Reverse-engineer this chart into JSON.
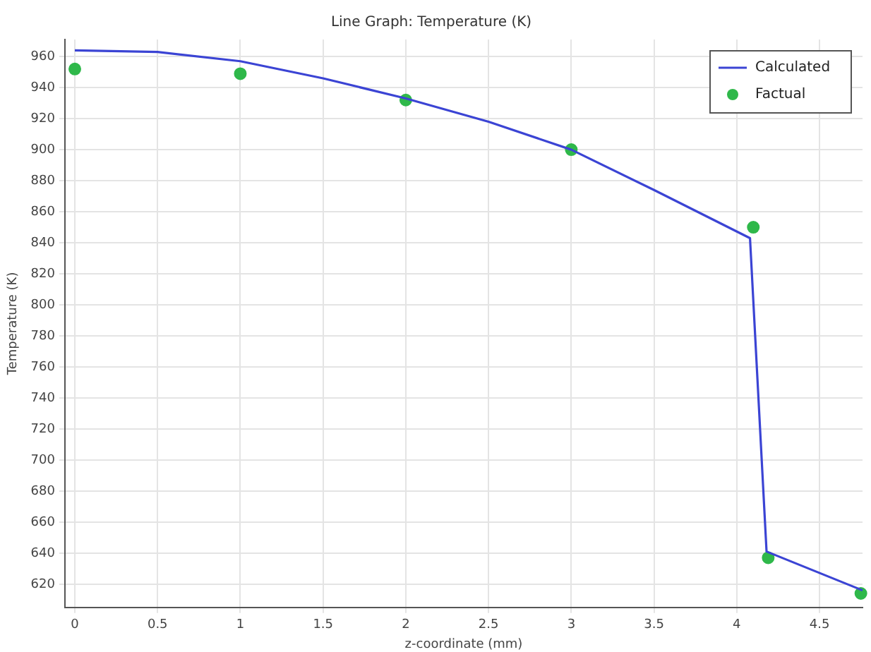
{
  "chart_data": {
    "type": "line",
    "title": "Line Graph: Temperature (K)",
    "xlabel": "z-coordinate (mm)",
    "ylabel": "Temperature (K)",
    "xlim": [
      -0.06,
      4.76
    ],
    "xticks": [
      0,
      0.5,
      1,
      1.5,
      2,
      2.5,
      3,
      3.5,
      4,
      4.5
    ],
    "ylim": [
      605,
      971
    ],
    "yticks": [
      620,
      640,
      660,
      680,
      700,
      720,
      740,
      760,
      780,
      800,
      820,
      840,
      860,
      880,
      900,
      920,
      940,
      960
    ],
    "grid": true,
    "legend": "top right",
    "series": [
      {
        "name": "Calculated",
        "color": "#3b44d4",
        "marker": "none",
        "x": [
          0,
          0.5,
          1,
          1.5,
          2,
          2.5,
          3,
          3.5,
          4.08,
          4.18,
          4.76
        ],
        "values": [
          964,
          963,
          957,
          946,
          933,
          918,
          900,
          874,
          843,
          641,
          616
        ]
      },
      {
        "name": "Factual",
        "type": "scatter",
        "color": "#2fb84a",
        "marker": "circle",
        "x": [
          0,
          1,
          2,
          3,
          4.1,
          4.19,
          4.75
        ],
        "values": [
          952,
          949,
          932,
          900,
          850,
          637,
          614
        ]
      }
    ]
  }
}
